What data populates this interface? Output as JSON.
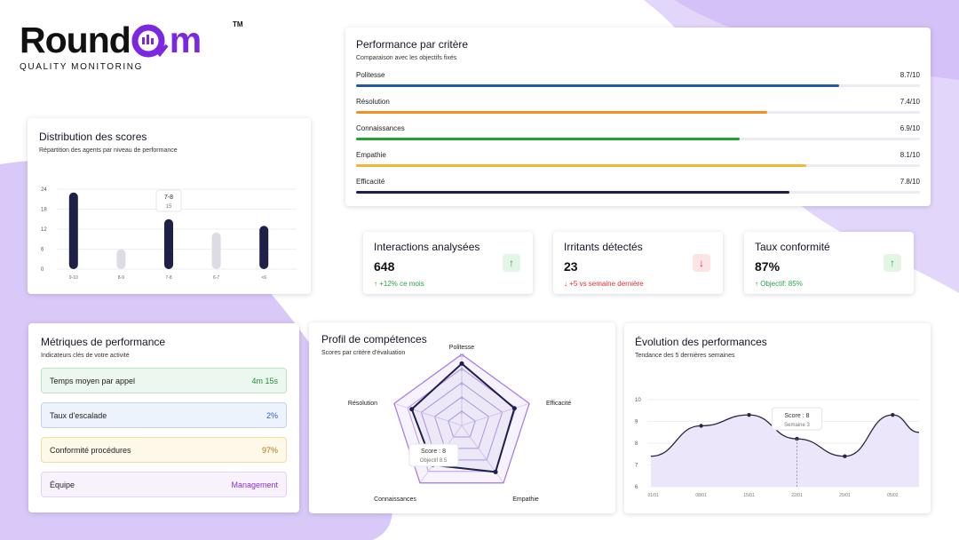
{
  "logo": {
    "part1": "Round",
    "part2": "Q",
    "part3": "m",
    "tm": "TM",
    "tagline": "QUALITY MONITORING"
  },
  "criteria": {
    "title": "Performance par critère",
    "subtitle": "Comparaison avec les objectifs fixés",
    "items": [
      {
        "label": "Politesse",
        "value": "8.7/10",
        "score": 8.7,
        "color": "#2557a7"
      },
      {
        "label": "Résolution",
        "value": "7.4/10",
        "score": 7.4,
        "color": "#f5901e"
      },
      {
        "label": "Connaissances",
        "value": "6.9/10",
        "score": 6.9,
        "color": "#21a331"
      },
      {
        "label": "Empathie",
        "value": "8.1/10",
        "score": 8.1,
        "color": "#f6b531"
      },
      {
        "label": "Efficacité",
        "value": "7.8/10",
        "score": 7.8,
        "color": "#1d1f4f"
      }
    ]
  },
  "distribution": {
    "title": "Distribution des scores",
    "subtitle": "Répartition des agents par niveau de performance",
    "tooltip": {
      "label": "7-8",
      "value": "15"
    }
  },
  "kpis": [
    {
      "title": "Interactions analysées",
      "value": "648",
      "change": "↑ +12% ce mois",
      "arrow": "↑",
      "trend": "up"
    },
    {
      "title": "Irritants détectés",
      "value": "23",
      "change": "↓ +5 vs semaine dernière",
      "arrow": "↓",
      "trend": "down"
    },
    {
      "title": "Taux conformité",
      "value": "87%",
      "change": "↑ Objectif: 85%",
      "arrow": "↑",
      "trend": "up"
    }
  ],
  "metrics": {
    "title": "Métriques de performance",
    "subtitle": "Indicateurs clés de votre activité",
    "rows": [
      {
        "label": "Temps moyen par appel",
        "value": "4m 15s",
        "bg": "#ecf8ef",
        "border": "#b8e6c3",
        "color": "#1f8f3a"
      },
      {
        "label": "Taux d'escalade",
        "value": "2%",
        "bg": "#edf3fd",
        "border": "#bfd2f3",
        "color": "#2a5ec9"
      },
      {
        "label": "Conformité procédures",
        "value": "97%",
        "bg": "#fdf8e8",
        "border": "#efdca0",
        "color": "#b0790f"
      },
      {
        "label": "Équipe",
        "value": "Management",
        "bg": "#f8f2fd",
        "border": "#e3d2f5",
        "color": "#8a2fd6"
      }
    ]
  },
  "radar": {
    "title": "Profil de compétences",
    "subtitle": "Scores par critère d'évaluation",
    "tooltip": {
      "line1": "Score : 8",
      "line2": "Objectif 8.5"
    }
  },
  "evolution": {
    "title": "Évolution des performances",
    "subtitle": "Tendance des 5 dernières semaines",
    "tooltip": {
      "line1": "Score : 8",
      "line2": "Semaine 3"
    }
  },
  "chart_data": [
    {
      "type": "bar",
      "categories": [
        "9-10",
        "8-9",
        "7-8",
        "6-7",
        "<6"
      ],
      "series": [
        {
          "values": [
            23,
            6,
            15,
            11,
            13
          ]
        }
      ],
      "yticks": [
        "0",
        "6",
        "12",
        "18",
        "24"
      ],
      "ylim": [
        0,
        24
      ],
      "highlight_colors": [
        "#1e2048",
        "#dcdce4",
        "#1e2048",
        "#dcdce4",
        "#1e2048"
      ],
      "title": "",
      "xlabel": "",
      "ylabel": ""
    },
    {
      "type": "radar",
      "axes": [
        "Politesse",
        "Efficacité",
        "Empathie",
        "Connaissances",
        "Résolution"
      ],
      "ticks": [
        "2",
        "4",
        "6",
        "8",
        "10"
      ],
      "rmax": 10,
      "series": [
        {
          "values": [
            8.7,
            7.8,
            8.1,
            6.9,
            7.4
          ],
          "color": "#1e2048"
        }
      ],
      "outline_values": [
        10,
        10,
        10,
        10,
        10
      ],
      "title": ""
    },
    {
      "type": "area",
      "categories": [
        "01/01",
        "08/01",
        "15/01",
        "22/01",
        "29/01",
        "05/02"
      ],
      "points_x": [
        -0.05,
        1,
        2,
        3,
        4,
        5,
        5.55
      ],
      "points_y": [
        7.4,
        8.8,
        9.3,
        8.2,
        7.4,
        9.3,
        8.5
      ],
      "yticks": [
        "6",
        "7",
        "8",
        "9",
        "10"
      ],
      "ylim": [
        6,
        10
      ],
      "color": "#2a2541",
      "fill": "#ece6fb",
      "title": ""
    }
  ]
}
